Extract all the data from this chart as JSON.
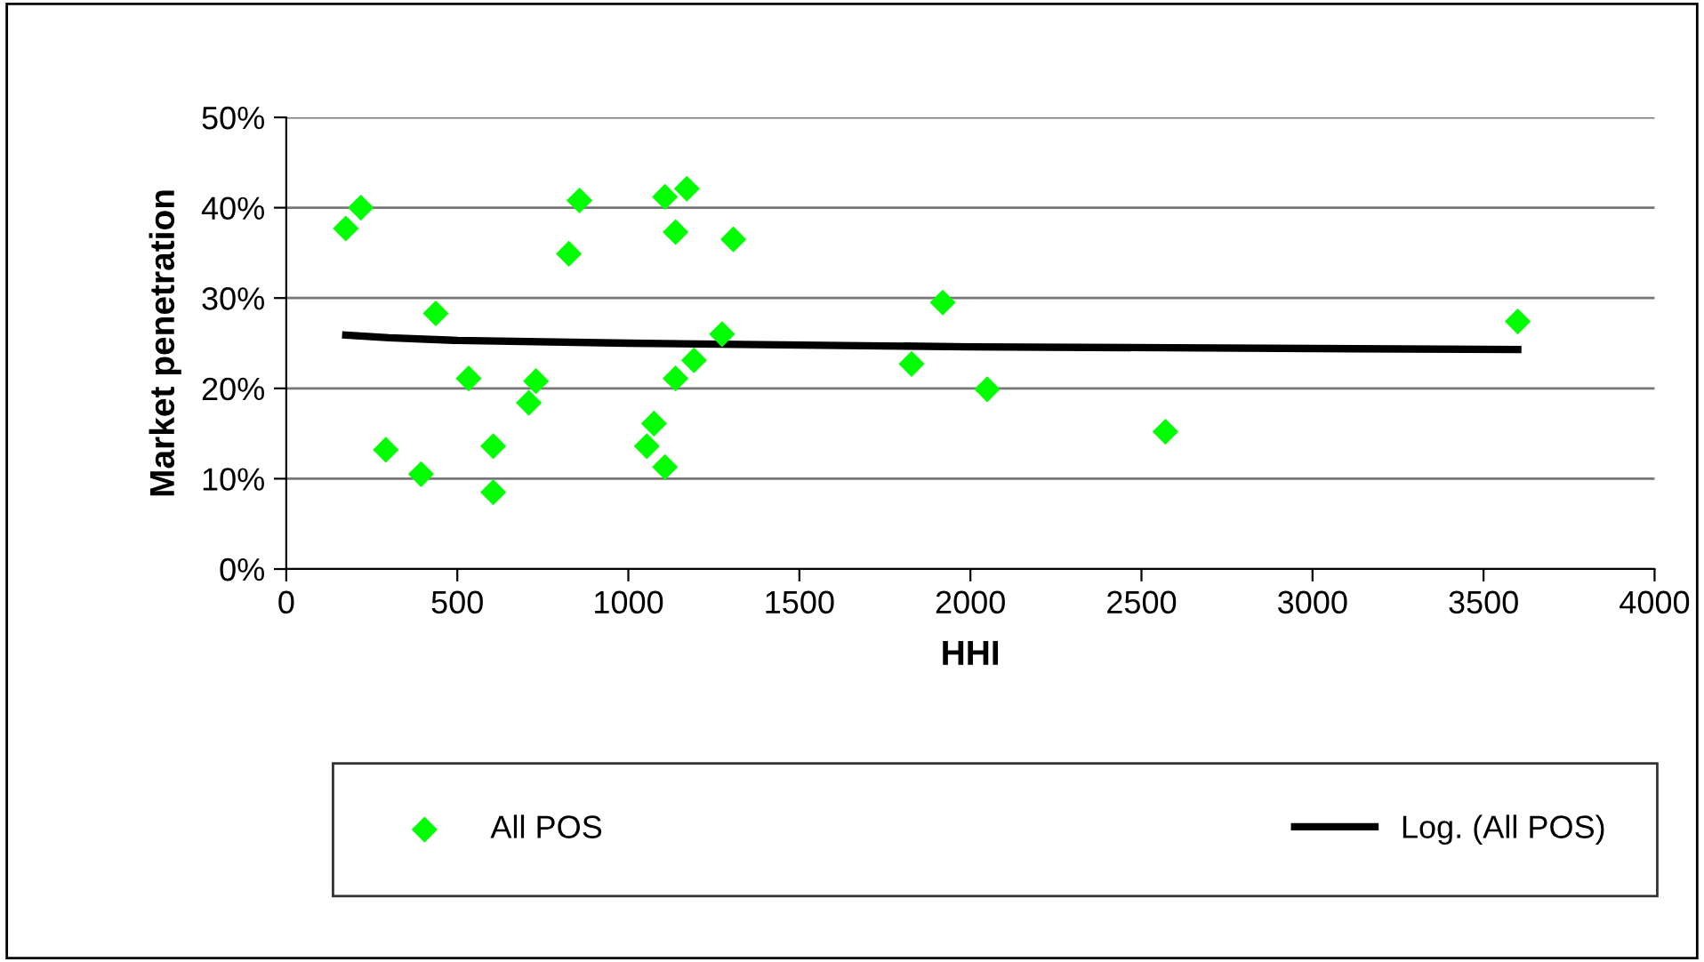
{
  "chart_data": {
    "type": "scatter",
    "xlabel": "HHI",
    "ylabel": "Market penetration",
    "series": [
      {
        "name": "All POS",
        "color": "#00ff00",
        "marker": "diamond",
        "x": [
          174,
          218,
          291,
          394,
          437,
          533,
          605,
          605,
          709,
          730,
          826,
          857,
          1054,
          1075,
          1107,
          1107,
          1138,
          1138,
          1171,
          1192,
          1274,
          1307,
          1919,
          1828,
          2049,
          2570,
          3600
        ],
        "values": [
          37.7,
          40.0,
          13.2,
          10.5,
          28.3,
          21.1,
          13.6,
          8.5,
          18.4,
          20.8,
          34.9,
          40.8,
          13.6,
          16.1,
          11.3,
          41.2,
          21.1,
          37.3,
          42.1,
          23.1,
          26.0,
          36.5,
          29.5,
          22.7,
          19.9,
          15.2,
          27.4
        ]
      },
      {
        "name": "Log. (All POS)",
        "type": "line",
        "color": "#000000",
        "marker": "none",
        "line_style": "solid",
        "x": [
          174,
          300,
          500,
          1000,
          2000,
          3600
        ],
        "values": [
          25.9,
          25.6,
          25.3,
          25.0,
          24.6,
          24.3
        ]
      }
    ],
    "xlim": [
      0,
      4000
    ],
    "xticks": [
      0,
      500,
      1000,
      1500,
      2000,
      2500,
      3000,
      3500,
      4000
    ],
    "ylim": [
      0,
      50
    ],
    "yticks": [
      {
        "value": 0,
        "label": "0%"
      },
      {
        "value": 10,
        "label": "10%"
      },
      {
        "value": 20,
        "label": "20%"
      },
      {
        "value": 30,
        "label": "30%"
      },
      {
        "value": 40,
        "label": "40%"
      },
      {
        "value": 50,
        "label": "50%"
      }
    ],
    "grid": "y",
    "legend": "bottom"
  }
}
